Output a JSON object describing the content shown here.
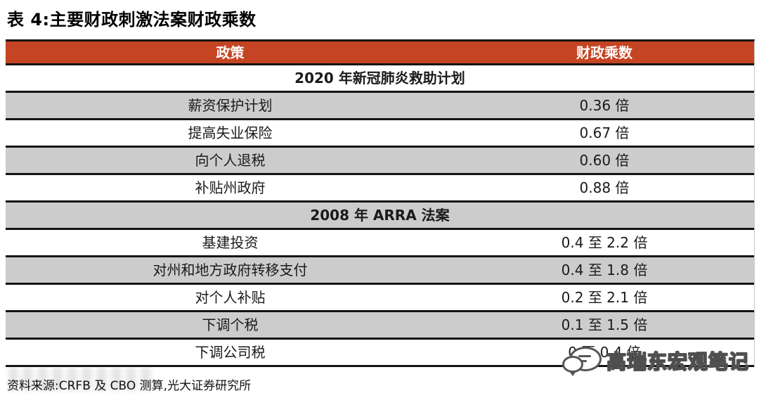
{
  "title": "表 4:主要财政刺激法案财政乘数",
  "table": {
    "columns": [
      "政策",
      "财政乘数"
    ],
    "rows": [
      {
        "type": "section",
        "label": "2020 年新冠肺炎救助计划"
      },
      {
        "type": "data",
        "policy": "薪资保护计划",
        "multiplier": "0.36 倍"
      },
      {
        "type": "data",
        "policy": "提高失业保险",
        "multiplier": "0.67 倍"
      },
      {
        "type": "data",
        "policy": "向个人退税",
        "multiplier": "0.60 倍"
      },
      {
        "type": "data",
        "policy": "补贴州政府",
        "multiplier": "0.88 倍"
      },
      {
        "type": "section",
        "label": "2008 年 ARRA 法案"
      },
      {
        "type": "data",
        "policy": "基建投资",
        "multiplier": "0.4 至 2.2 倍"
      },
      {
        "type": "data",
        "policy": "对州和地方政府转移支付",
        "multiplier": "0.4 至 1.8 倍"
      },
      {
        "type": "data",
        "policy": "对个人补贴",
        "multiplier": "0.2 至 2.1 倍"
      },
      {
        "type": "data",
        "policy": "下调个税",
        "multiplier": "0.1 至 1.5 倍"
      },
      {
        "type": "data",
        "policy": "下调公司税",
        "multiplier": "0 至 0.4 倍"
      }
    ]
  },
  "footer": {
    "source": "资料来源:CRFB 及 CBO 测算,光大证券研究所"
  },
  "watermark": {
    "label": "高瑞东宏观笔记",
    "icon": "chat-bubbles-icon"
  },
  "colors": {
    "header_bg": "#C44423",
    "header_text": "#FFFFFF",
    "shaded_row_bg": "#CCCCCC",
    "border": "#141414"
  }
}
